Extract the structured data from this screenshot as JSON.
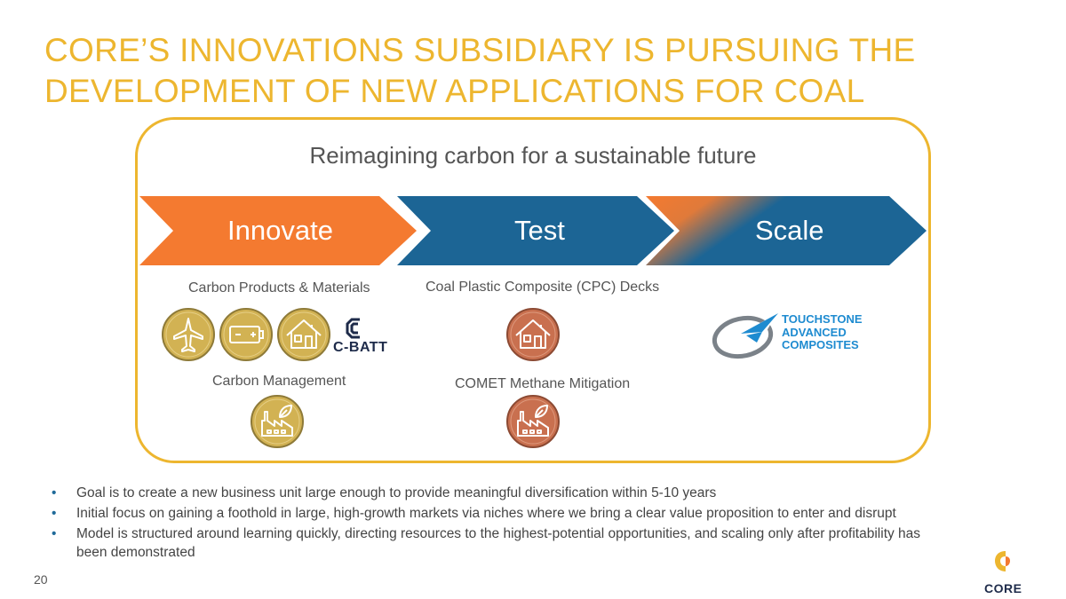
{
  "title": "CORE’S INNOVATIONS SUBSIDIARY IS PURSUING THE DEVELOPMENT OF NEW APPLICATIONS FOR COAL",
  "subtitle": "Reimagining carbon for a sustainable future",
  "stages": [
    {
      "label": "Innovate",
      "color": "#F47A30"
    },
    {
      "label": "Test",
      "color": "#1C6595"
    },
    {
      "label": "Scale",
      "color": "#1C6595"
    }
  ],
  "sections": {
    "carbon_products": "Carbon Products & Materials",
    "carbon_management": "Carbon Management",
    "cpc_decks": "Coal Plastic Composite (CPC) Decks",
    "comet": "COMET Methane Mitigation"
  },
  "icons": [
    "airplane-icon",
    "battery-icon",
    "house-icon",
    "factory-leaf-icon"
  ],
  "logos": {
    "cbatt": "C-BATT",
    "touchstone": [
      "TOUCHSTONE",
      "ADVANCED",
      "COMPOSITES"
    ],
    "core": "CORE"
  },
  "bullets": [
    "Goal is to create a new business unit large enough to provide meaningful diversification within 5-10 years",
    "Initial focus on gaining a foothold in large, high-growth markets via niches where we bring a clear value proposition to enter and disrupt",
    "Model is structured around learning quickly, directing resources to the highest-potential opportunities, and scaling only after profitability has been demonstrated"
  ],
  "bullet_symbol": "•",
  "page_number": "20",
  "colors": {
    "gold": "#EDB62F",
    "orange": "#F47A30",
    "blue": "#1C6595",
    "copper": "#C9704F"
  }
}
